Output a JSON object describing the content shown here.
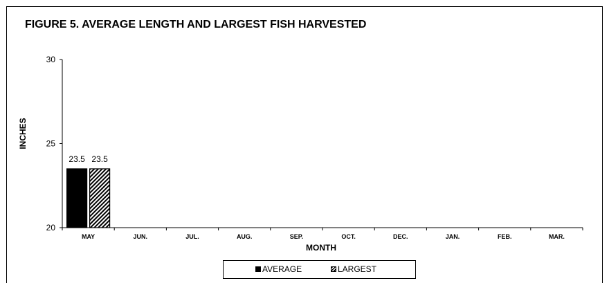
{
  "chart_data": {
    "type": "bar",
    "title": "FIGURE 5.  AVERAGE LENGTH AND LARGEST FISH HARVESTED",
    "xlabel": "MONTH",
    "ylabel": "INCHES",
    "ylim": [
      20,
      30
    ],
    "yticks": [
      20,
      25,
      30
    ],
    "categories": [
      "MAY",
      "JUN.",
      "JUL.",
      "AUG.",
      "SEP.",
      "OCT.",
      "DEC.",
      "JAN.",
      "FEB.",
      "MAR."
    ],
    "series": [
      {
        "name": "AVERAGE",
        "values": [
          23.5,
          null,
          null,
          null,
          null,
          null,
          null,
          null,
          null,
          null
        ],
        "fill": "solid",
        "color": "#000000"
      },
      {
        "name": "LARGEST",
        "values": [
          23.5,
          null,
          null,
          null,
          null,
          null,
          null,
          null,
          null,
          null
        ],
        "fill": "hatched",
        "color": "#000000"
      }
    ],
    "data_labels": true,
    "grid": false,
    "legend": "bottom"
  }
}
